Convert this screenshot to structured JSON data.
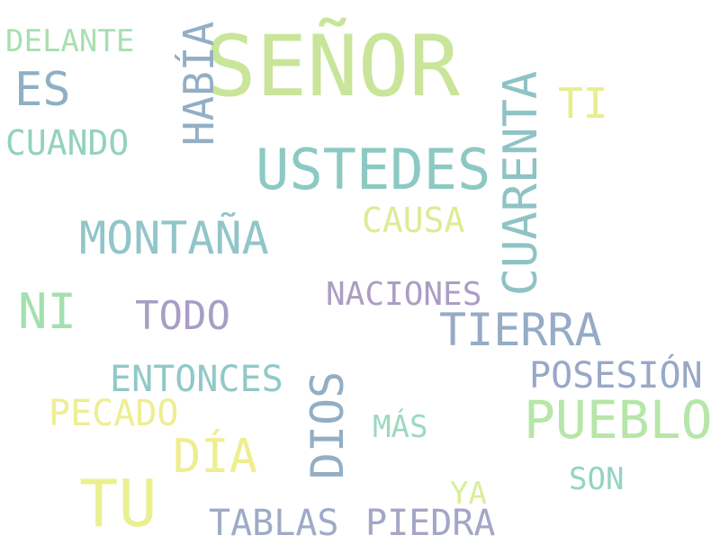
{
  "words": {
    "senor": {
      "text": "SEÑOR",
      "color": "#c9e59a"
    },
    "ustedes": {
      "text": "USTEDES",
      "color": "#8cc9c2"
    },
    "cuarenta": {
      "text": "CUARENTA",
      "color": "#8fc3c4"
    },
    "habia": {
      "text": "HABÍA",
      "color": "#93aec5"
    },
    "delante": {
      "text": "DELANTE",
      "color": "#a8dfb1"
    },
    "es": {
      "text": "ES",
      "color": "#8fb0c4"
    },
    "cuando": {
      "text": "CUANDO",
      "color": "#93d2bc"
    },
    "ti": {
      "text": "TI",
      "color": "#e6ee8e"
    },
    "montana": {
      "text": "MONTAÑA",
      "color": "#92c5c8"
    },
    "causa": {
      "text": "CAUSA",
      "color": "#dcec96"
    },
    "ni": {
      "text": "NI",
      "color": "#a3e0b0"
    },
    "todo": {
      "text": "TODO",
      "color": "#a99dc5"
    },
    "naciones": {
      "text": "NACIONES",
      "color": "#ab9dc4"
    },
    "tierra": {
      "text": "TIERRA",
      "color": "#95abc6"
    },
    "entonces": {
      "text": "ENTONCES",
      "color": "#91c8c8"
    },
    "posesion": {
      "text": "POSESIÓN",
      "color": "#98a8c7"
    },
    "pecado": {
      "text": "PECADO",
      "color": "#eeee92"
    },
    "dios": {
      "text": "DIOS",
      "color": "#93aec5"
    },
    "pueblo": {
      "text": "PUEBLO",
      "color": "#b6e6a9"
    },
    "mas": {
      "text": "MÁS",
      "color": "#9cd9c0"
    },
    "dia": {
      "text": "DÍA",
      "color": "#eeee90"
    },
    "son": {
      "text": "SON",
      "color": "#95d2c2"
    },
    "tu": {
      "text": "TU",
      "color": "#eaf090"
    },
    "ya": {
      "text": "YA",
      "color": "#d9ee98"
    },
    "tablas": {
      "text": "TABLAS",
      "color": "#9eaac8"
    },
    "piedra": {
      "text": "PIEDRA",
      "color": "#a4a6c8"
    }
  }
}
